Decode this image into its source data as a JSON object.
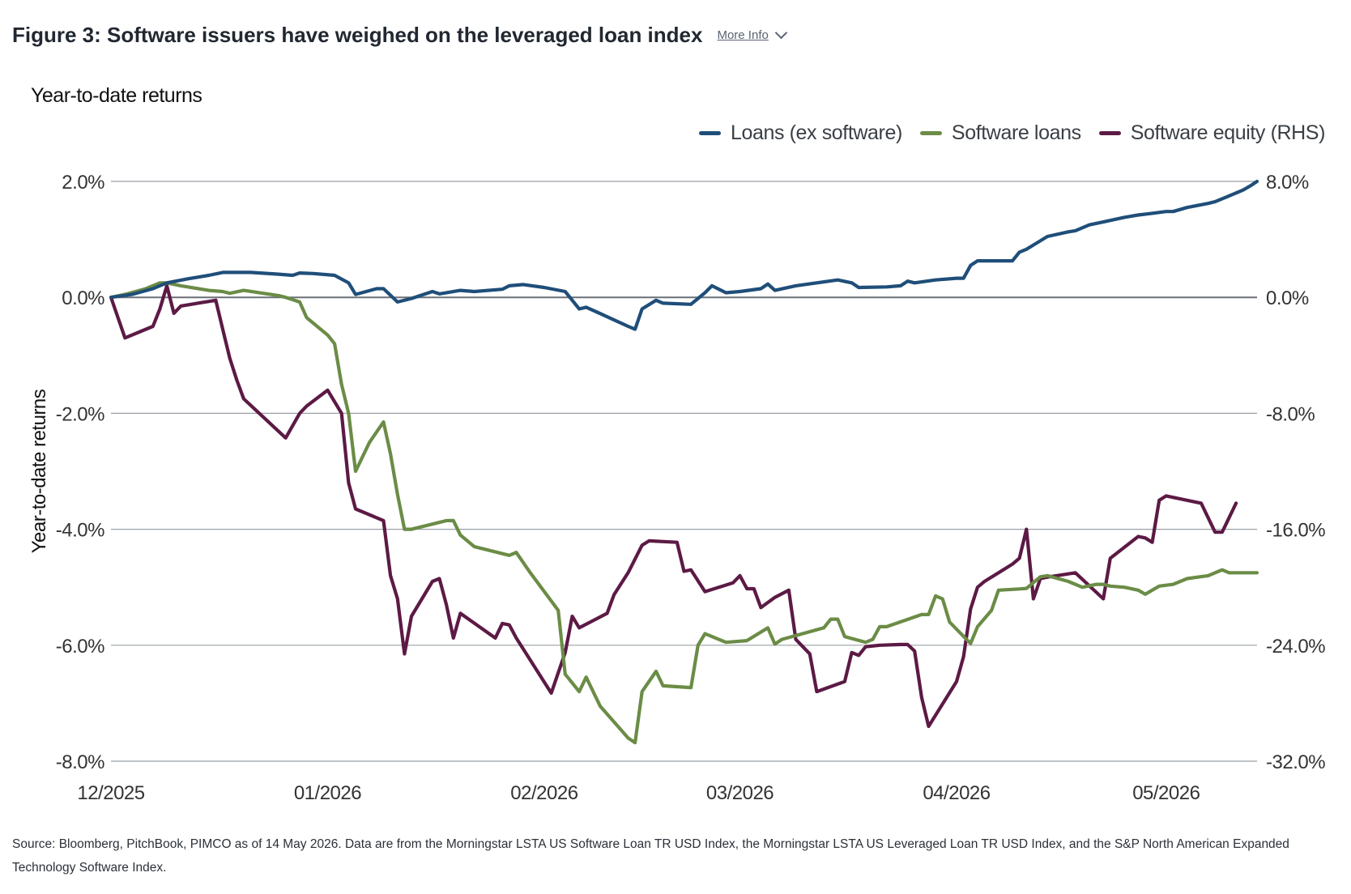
{
  "header": {
    "title": "Figure 3: Software issuers have weighed on the leveraged loan index",
    "more_info": "More Info"
  },
  "colors": {
    "loans_ex_software": "#1f4e79",
    "software_loans": "#6b8c46",
    "software_equity": "#5c1a45",
    "grid": "#9aa0a6",
    "zero_line": "#6b7078"
  },
  "footer": {
    "source": "Source: Bloomberg, PitchBook, PIMCO as of 14 May 2026. Data are from the Morningstar LSTA US Software Loan TR USD Index, the Morningstar LSTA US Leveraged Loan TR USD Index, and the S&P North American Expanded Technology Software Index."
  },
  "chart_data": {
    "type": "line",
    "title": "Year-to-date returns",
    "ylabel": "Year-to-date returns",
    "y2label": "",
    "ylim": [
      -8,
      2
    ],
    "y2lim": [
      -32,
      8
    ],
    "yticks": [
      "2.0%",
      "0.0%",
      "-2.0%",
      "-4.0%",
      "-6.0%",
      "-8.0%"
    ],
    "y2ticks": [
      "8.0%",
      "0.0%",
      "-8.0%",
      "-16.0%",
      "-24.0%",
      "-32.0%"
    ],
    "xlim": [
      "2025-12-01",
      "2026-05-14"
    ],
    "xticks": [
      {
        "label": "12/2025",
        "date": "2025-12-01"
      },
      {
        "label": "01/2026",
        "date": "2026-01-01"
      },
      {
        "label": "02/2026",
        "date": "2026-02-01"
      },
      {
        "label": "03/2026",
        "date": "2026-03-01"
      },
      {
        "label": "04/2026",
        "date": "2026-04-01"
      },
      {
        "label": "05/2026",
        "date": "2026-05-01"
      }
    ],
    "grid": true,
    "legend_position": "top-right",
    "series": [
      {
        "name": "Loans (ex software)",
        "axis": "left",
        "color": "#1f4e79",
        "points": [
          [
            "2025-12-01",
            0.0
          ],
          [
            "2025-12-04",
            0.05
          ],
          [
            "2025-12-07",
            0.15
          ],
          [
            "2025-12-09",
            0.25
          ],
          [
            "2025-12-12",
            0.32
          ],
          [
            "2025-12-15",
            0.38
          ],
          [
            "2025-12-17",
            0.43
          ],
          [
            "2025-12-21",
            0.43
          ],
          [
            "2025-12-25",
            0.4
          ],
          [
            "2025-12-27",
            0.38
          ],
          [
            "2025-12-28",
            0.42
          ],
          [
            "2025-12-30",
            0.41
          ],
          [
            "2026-01-02",
            0.38
          ],
          [
            "2026-01-04",
            0.25
          ],
          [
            "2026-01-05",
            0.05
          ],
          [
            "2026-01-08",
            0.15
          ],
          [
            "2026-01-09",
            0.15
          ],
          [
            "2026-01-11",
            -0.08
          ],
          [
            "2026-01-13",
            -0.02
          ],
          [
            "2026-01-16",
            0.1
          ],
          [
            "2026-01-17",
            0.06
          ],
          [
            "2026-01-20",
            0.12
          ],
          [
            "2026-01-22",
            0.1
          ],
          [
            "2026-01-26",
            0.14
          ],
          [
            "2026-01-27",
            0.2
          ],
          [
            "2026-01-29",
            0.22
          ],
          [
            "2026-02-01",
            0.17
          ],
          [
            "2026-02-04",
            0.1
          ],
          [
            "2026-02-05",
            -0.05
          ],
          [
            "2026-02-06",
            -0.2
          ],
          [
            "2026-02-07",
            -0.17
          ],
          [
            "2026-02-09",
            -0.28
          ],
          [
            "2026-02-13",
            -0.5
          ],
          [
            "2026-02-14",
            -0.55
          ],
          [
            "2026-02-15",
            -0.2
          ],
          [
            "2026-02-17",
            -0.05
          ],
          [
            "2026-02-18",
            -0.1
          ],
          [
            "2026-02-22",
            -0.12
          ],
          [
            "2026-02-24",
            0.08
          ],
          [
            "2026-02-25",
            0.2
          ],
          [
            "2026-02-27",
            0.08
          ],
          [
            "2026-03-01",
            0.1
          ],
          [
            "2026-03-04",
            0.15
          ],
          [
            "2026-03-05",
            0.23
          ],
          [
            "2026-03-06",
            0.12
          ],
          [
            "2026-03-09",
            0.2
          ],
          [
            "2026-03-12",
            0.25
          ],
          [
            "2026-03-15",
            0.3
          ],
          [
            "2026-03-17",
            0.25
          ],
          [
            "2026-03-18",
            0.17
          ],
          [
            "2026-03-22",
            0.18
          ],
          [
            "2026-03-24",
            0.2
          ],
          [
            "2026-03-25",
            0.28
          ],
          [
            "2026-03-26",
            0.25
          ],
          [
            "2026-03-29",
            0.3
          ],
          [
            "2026-04-01",
            0.33
          ],
          [
            "2026-04-02",
            0.33
          ],
          [
            "2026-04-03",
            0.55
          ],
          [
            "2026-04-04",
            0.63
          ],
          [
            "2026-04-08",
            0.63
          ],
          [
            "2026-04-09",
            0.63
          ],
          [
            "2026-04-10",
            0.78
          ],
          [
            "2026-04-11",
            0.83
          ],
          [
            "2026-04-14",
            1.05
          ],
          [
            "2026-04-17",
            1.13
          ],
          [
            "2026-04-18",
            1.15
          ],
          [
            "2026-04-20",
            1.25
          ],
          [
            "2026-04-22",
            1.3
          ],
          [
            "2026-04-25",
            1.38
          ],
          [
            "2026-04-27",
            1.42
          ],
          [
            "2026-04-29",
            1.45
          ],
          [
            "2026-05-01",
            1.48
          ],
          [
            "2026-05-02",
            1.48
          ],
          [
            "2026-05-04",
            1.55
          ],
          [
            "2026-05-07",
            1.62
          ],
          [
            "2026-05-08",
            1.65
          ],
          [
            "2026-05-10",
            1.75
          ],
          [
            "2026-05-12",
            1.85
          ],
          [
            "2026-05-13",
            1.92
          ],
          [
            "2026-05-14",
            2.0
          ]
        ]
      },
      {
        "name": "Software loans",
        "axis": "left",
        "color": "#6b8c46",
        "points": [
          [
            "2025-12-01",
            0.0
          ],
          [
            "2025-12-03",
            0.05
          ],
          [
            "2025-12-06",
            0.15
          ],
          [
            "2025-12-08",
            0.25
          ],
          [
            "2025-12-09",
            0.25
          ],
          [
            "2025-12-11",
            0.2
          ],
          [
            "2025-12-15",
            0.12
          ],
          [
            "2025-12-17",
            0.1
          ],
          [
            "2025-12-18",
            0.07
          ],
          [
            "2025-12-20",
            0.12
          ],
          [
            "2025-12-25",
            0.03
          ],
          [
            "2025-12-26",
            0.0
          ],
          [
            "2025-12-28",
            -0.08
          ],
          [
            "2025-12-29",
            -0.35
          ],
          [
            "2026-01-01",
            -0.65
          ],
          [
            "2026-01-02",
            -0.8
          ],
          [
            "2026-01-03",
            -1.5
          ],
          [
            "2026-01-04",
            -2.0
          ],
          [
            "2026-01-05",
            -3.0
          ],
          [
            "2026-01-07",
            -2.5
          ],
          [
            "2026-01-09",
            -2.15
          ],
          [
            "2026-01-10",
            -2.7
          ],
          [
            "2026-01-11",
            -3.4
          ],
          [
            "2026-01-12",
            -4.0
          ],
          [
            "2026-01-13",
            -4.0
          ],
          [
            "2026-01-18",
            -3.85
          ],
          [
            "2026-01-19",
            -3.85
          ],
          [
            "2026-01-20",
            -4.1
          ],
          [
            "2026-01-22",
            -4.3
          ],
          [
            "2026-01-27",
            -4.45
          ],
          [
            "2026-01-28",
            -4.4
          ],
          [
            "2026-01-30",
            -4.75
          ],
          [
            "2026-02-03",
            -5.4
          ],
          [
            "2026-02-04",
            -6.5
          ],
          [
            "2026-02-06",
            -6.8
          ],
          [
            "2026-02-07",
            -6.55
          ],
          [
            "2026-02-09",
            -7.05
          ],
          [
            "2026-02-13",
            -7.6
          ],
          [
            "2026-02-14",
            -7.68
          ],
          [
            "2026-02-15",
            -6.8
          ],
          [
            "2026-02-17",
            -6.45
          ],
          [
            "2026-02-18",
            -6.7
          ],
          [
            "2026-02-22",
            -6.73
          ],
          [
            "2026-02-23",
            -6.0
          ],
          [
            "2026-02-24",
            -5.8
          ],
          [
            "2026-02-25",
            -5.85
          ],
          [
            "2026-02-27",
            -5.95
          ],
          [
            "2026-03-02",
            -5.92
          ],
          [
            "2026-03-05",
            -5.7
          ],
          [
            "2026-03-06",
            -5.98
          ],
          [
            "2026-03-07",
            -5.9
          ],
          [
            "2026-03-13",
            -5.7
          ],
          [
            "2026-03-14",
            -5.55
          ],
          [
            "2026-03-15",
            -5.55
          ],
          [
            "2026-03-16",
            -5.85
          ],
          [
            "2026-03-19",
            -5.95
          ],
          [
            "2026-03-20",
            -5.9
          ],
          [
            "2026-03-21",
            -5.68
          ],
          [
            "2026-03-22",
            -5.68
          ],
          [
            "2026-03-27",
            -5.47
          ],
          [
            "2026-03-28",
            -5.47
          ],
          [
            "2026-03-29",
            -5.15
          ],
          [
            "2026-03-30",
            -5.2
          ],
          [
            "2026-03-31",
            -5.6
          ],
          [
            "2026-04-03",
            -5.97
          ],
          [
            "2026-04-04",
            -5.68
          ],
          [
            "2026-04-06",
            -5.4
          ],
          [
            "2026-04-07",
            -5.05
          ],
          [
            "2026-04-10",
            -5.03
          ],
          [
            "2026-04-11",
            -5.02
          ],
          [
            "2026-04-13",
            -4.82
          ],
          [
            "2026-04-14",
            -4.8
          ],
          [
            "2026-04-17",
            -4.9
          ],
          [
            "2026-04-19",
            -5.0
          ],
          [
            "2026-04-21",
            -4.95
          ],
          [
            "2026-04-22",
            -4.95
          ],
          [
            "2026-04-23",
            -4.98
          ],
          [
            "2026-04-25",
            -5.0
          ],
          [
            "2026-04-27",
            -5.05
          ],
          [
            "2026-04-28",
            -5.12
          ],
          [
            "2026-04-29",
            -5.05
          ],
          [
            "2026-04-30",
            -4.98
          ],
          [
            "2026-05-02",
            -4.95
          ],
          [
            "2026-05-04",
            -4.85
          ],
          [
            "2026-05-07",
            -4.8
          ],
          [
            "2026-05-09",
            -4.7
          ],
          [
            "2026-05-10",
            -4.75
          ],
          [
            "2026-05-14",
            -4.75
          ]
        ]
      },
      {
        "name": "Software equity (RHS)",
        "axis": "right",
        "color": "#5c1a45",
        "points": [
          [
            "2025-12-01",
            0.0
          ],
          [
            "2025-12-03",
            -2.8
          ],
          [
            "2025-12-07",
            -2.0
          ],
          [
            "2025-12-08",
            -0.8
          ],
          [
            "2025-12-09",
            0.8
          ],
          [
            "2025-12-10",
            -1.1
          ],
          [
            "2025-12-11",
            -0.6
          ],
          [
            "2025-12-16",
            -0.2
          ],
          [
            "2025-12-17",
            -2.2
          ],
          [
            "2025-12-18",
            -4.2
          ],
          [
            "2025-12-19",
            -5.7
          ],
          [
            "2025-12-20",
            -7.0
          ],
          [
            "2025-12-26",
            -9.7
          ],
          [
            "2025-12-28",
            -8.0
          ],
          [
            "2025-12-29",
            -7.5
          ],
          [
            "2026-01-01",
            -6.4
          ],
          [
            "2026-01-03",
            -8.0
          ],
          [
            "2026-01-04",
            -12.8
          ],
          [
            "2026-01-05",
            -14.6
          ],
          [
            "2026-01-09",
            -15.4
          ],
          [
            "2026-01-10",
            -19.2
          ],
          [
            "2026-01-11",
            -20.8
          ],
          [
            "2026-01-12",
            -24.6
          ],
          [
            "2026-01-13",
            -22.0
          ],
          [
            "2026-01-16",
            -19.6
          ],
          [
            "2026-01-17",
            -19.4
          ],
          [
            "2026-01-18",
            -21.2
          ],
          [
            "2026-01-19",
            -23.5
          ],
          [
            "2026-01-20",
            -21.8
          ],
          [
            "2026-01-25",
            -23.5
          ],
          [
            "2026-01-26",
            -22.5
          ],
          [
            "2026-01-27",
            -22.6
          ],
          [
            "2026-01-28",
            -23.5
          ],
          [
            "2026-02-02",
            -27.3
          ],
          [
            "2026-02-04",
            -24.5
          ],
          [
            "2026-02-05",
            -22.0
          ],
          [
            "2026-02-06",
            -22.8
          ],
          [
            "2026-02-10",
            -21.8
          ],
          [
            "2026-02-11",
            -20.5
          ],
          [
            "2026-02-13",
            -19.0
          ],
          [
            "2026-02-15",
            -17.1
          ],
          [
            "2026-02-16",
            -16.8
          ],
          [
            "2026-02-20",
            -16.9
          ],
          [
            "2026-02-21",
            -18.9
          ],
          [
            "2026-02-22",
            -18.8
          ],
          [
            "2026-02-24",
            -20.3
          ],
          [
            "2026-02-28",
            -19.7
          ],
          [
            "2026-03-01",
            -19.2
          ],
          [
            "2026-03-02",
            -20.1
          ],
          [
            "2026-03-03",
            -20.1
          ],
          [
            "2026-03-04",
            -21.4
          ],
          [
            "2026-03-06",
            -20.7
          ],
          [
            "2026-03-08",
            -20.2
          ],
          [
            "2026-03-09",
            -23.6
          ],
          [
            "2026-03-11",
            -24.6
          ],
          [
            "2026-03-12",
            -27.2
          ],
          [
            "2026-03-16",
            -26.5
          ],
          [
            "2026-03-17",
            -24.5
          ],
          [
            "2026-03-18",
            -24.7
          ],
          [
            "2026-03-19",
            -24.1
          ],
          [
            "2026-03-21",
            -24.0
          ],
          [
            "2026-03-24",
            -23.95
          ],
          [
            "2026-03-25",
            -23.95
          ],
          [
            "2026-03-26",
            -24.4
          ],
          [
            "2026-03-27",
            -27.6
          ],
          [
            "2026-03-28",
            -29.6
          ],
          [
            "2026-04-01",
            -26.5
          ],
          [
            "2026-04-02",
            -24.8
          ],
          [
            "2026-04-03",
            -21.5
          ],
          [
            "2026-04-04",
            -20.0
          ],
          [
            "2026-04-05",
            -19.6
          ],
          [
            "2026-04-07",
            -19.0
          ],
          [
            "2026-04-09",
            -18.4
          ],
          [
            "2026-04-10",
            -18.0
          ],
          [
            "2026-04-11",
            -16.0
          ],
          [
            "2026-04-12",
            -20.8
          ],
          [
            "2026-04-13",
            -19.4
          ],
          [
            "2026-04-14",
            -19.3
          ],
          [
            "2026-04-18",
            -19.0
          ],
          [
            "2026-04-22",
            -20.8
          ],
          [
            "2026-04-23",
            -18.0
          ],
          [
            "2026-04-27",
            -16.5
          ],
          [
            "2026-04-28",
            -16.6
          ],
          [
            "2026-04-29",
            -16.9
          ],
          [
            "2026-04-30",
            -14.0
          ],
          [
            "2026-05-01",
            -13.7
          ],
          [
            "2026-05-06",
            -14.2
          ],
          [
            "2026-05-08",
            -16.2
          ],
          [
            "2026-05-09",
            -16.2
          ],
          [
            "2026-05-10",
            -15.2
          ],
          [
            "2026-05-11",
            -14.2
          ]
        ]
      }
    ]
  }
}
